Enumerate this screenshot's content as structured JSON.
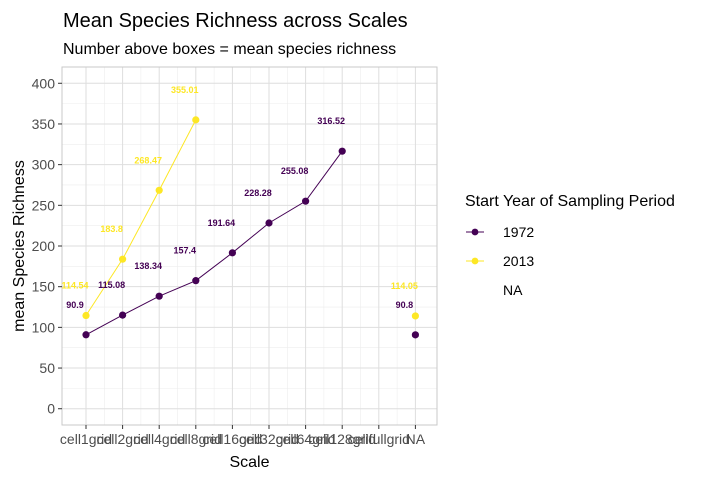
{
  "colors": {
    "1972": "#440154",
    "2013": "#FDE725",
    "grid": "#dedede",
    "border": "#c9c9c9"
  },
  "chart_data": {
    "type": "line",
    "title": "Mean Species Richness across Scales",
    "subtitle": "Number above boxes = mean species richness",
    "xlabel": "Scale",
    "ylabel": "mean Species Richness",
    "categories": [
      "cell1grid",
      "cell2grid",
      "cell4grid",
      "cell8grid",
      "cell16grid",
      "cell32grid",
      "cell64grid",
      "cell128grid",
      "cellfullgrid",
      "NA"
    ],
    "ylim": [
      -20,
      420
    ],
    "yticks": [
      0,
      50,
      100,
      150,
      200,
      250,
      300,
      350,
      400
    ],
    "grid": true,
    "legend_position": "right",
    "legend_title": "Start Year of Sampling Period",
    "series": [
      {
        "name": "1972",
        "line_values": [
          90.9,
          115.08,
          138.34,
          157.4,
          191.64,
          228.28,
          255.08,
          316.52,
          null,
          null
        ],
        "points": [
          {
            "cat": "cell1grid",
            "value": 90.9,
            "label": "90.9"
          },
          {
            "cat": "cell2grid",
            "value": 115.08,
            "label": "115.08"
          },
          {
            "cat": "cell4grid",
            "value": 138.34,
            "label": "138.34"
          },
          {
            "cat": "cell8grid",
            "value": 157.4,
            "label": "157.4"
          },
          {
            "cat": "cell16grid",
            "value": 191.64,
            "label": "191.64"
          },
          {
            "cat": "cell32grid",
            "value": 228.28,
            "label": "228.28"
          },
          {
            "cat": "cell64grid",
            "value": 255.08,
            "label": "255.08"
          },
          {
            "cat": "cell128grid",
            "value": 316.52,
            "label": "316.52"
          },
          {
            "cat": "NA",
            "value": 90.8,
            "label": "90.8"
          }
        ]
      },
      {
        "name": "2013",
        "line_values": [
          114.54,
          183.8,
          268.47,
          355.01,
          null,
          null,
          null,
          null,
          null,
          null
        ],
        "points": [
          {
            "cat": "cell1grid",
            "value": 114.54,
            "label": "114.54"
          },
          {
            "cat": "cell2grid",
            "value": 183.8,
            "label": "183.8"
          },
          {
            "cat": "cell4grid",
            "value": 268.47,
            "label": "268.47"
          },
          {
            "cat": "cell8grid",
            "value": 355.01,
            "label": "355.01"
          },
          {
            "cat": "NA",
            "value": 114.05,
            "label": "114.05"
          }
        ]
      }
    ],
    "legend_entries": [
      "1972",
      "2013",
      "NA"
    ]
  }
}
